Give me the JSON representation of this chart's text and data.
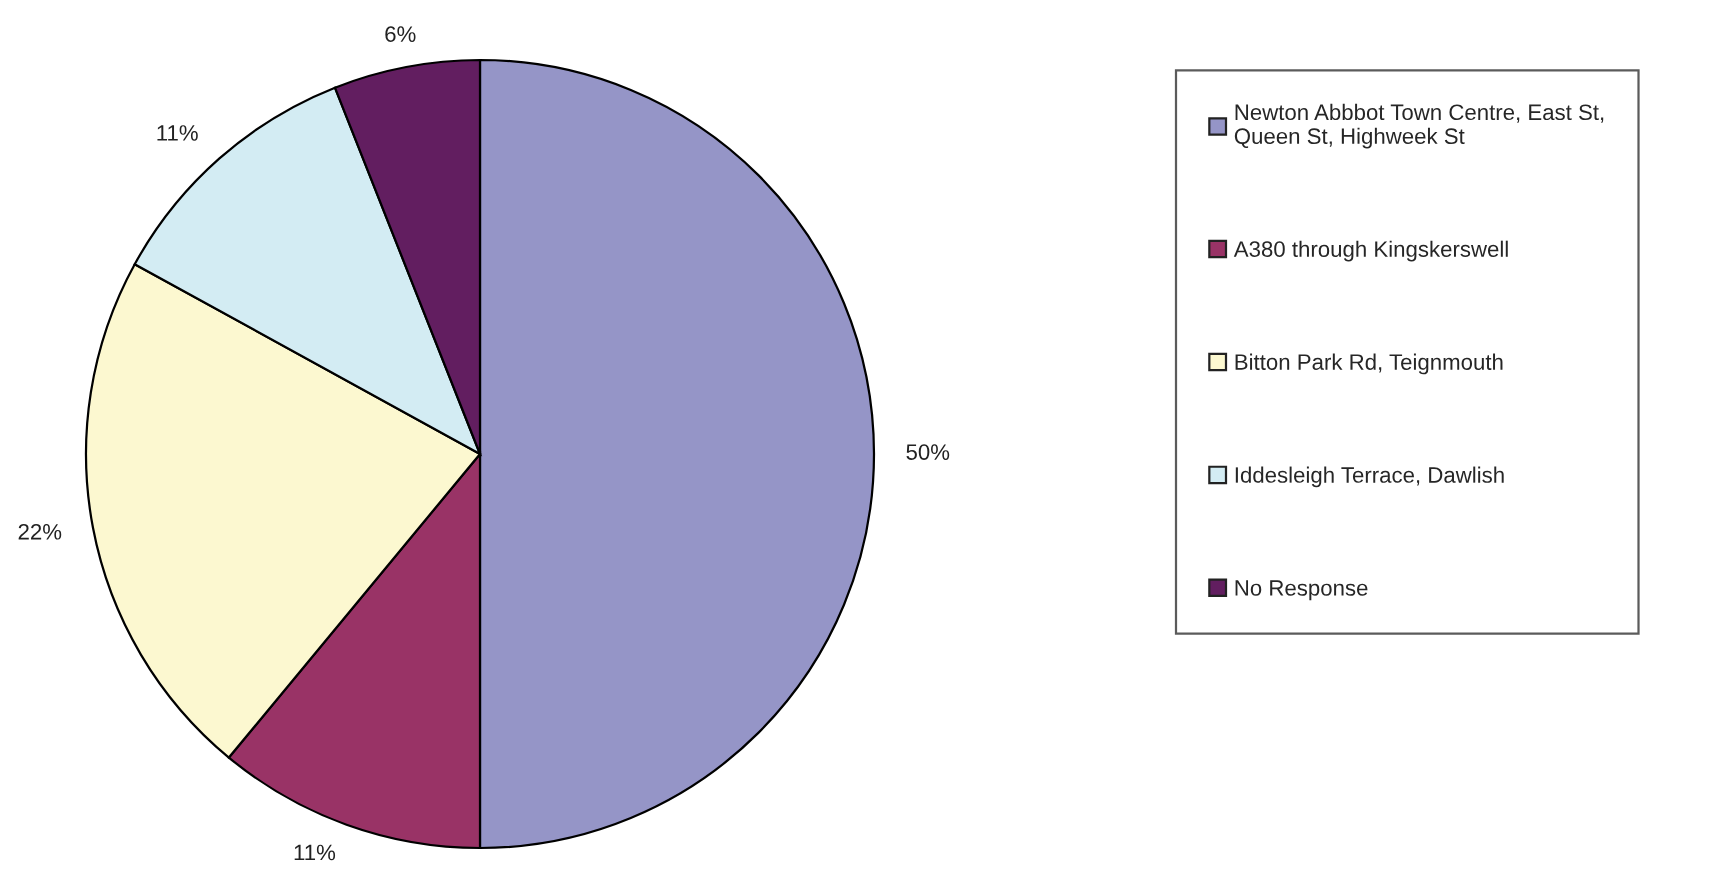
{
  "chart_data": {
    "type": "pie",
    "categories": [
      "Newton Abbbot Town Centre, East St,\nQueen St, Highweek St",
      "A380 through Kingskerswell",
      "Bitton Park Rd, Teignmouth",
      "Iddesleigh Terrace, Dawlish",
      "No Response"
    ],
    "values": [
      50,
      11,
      22,
      11,
      6
    ],
    "colors": [
      "#9595c7",
      "#993366",
      "#fcf8d0",
      "#d3ecf3",
      "#621e60"
    ],
    "value_labels": [
      "50%",
      "11%",
      "22%",
      "11%",
      "6%"
    ],
    "legend": "right"
  }
}
